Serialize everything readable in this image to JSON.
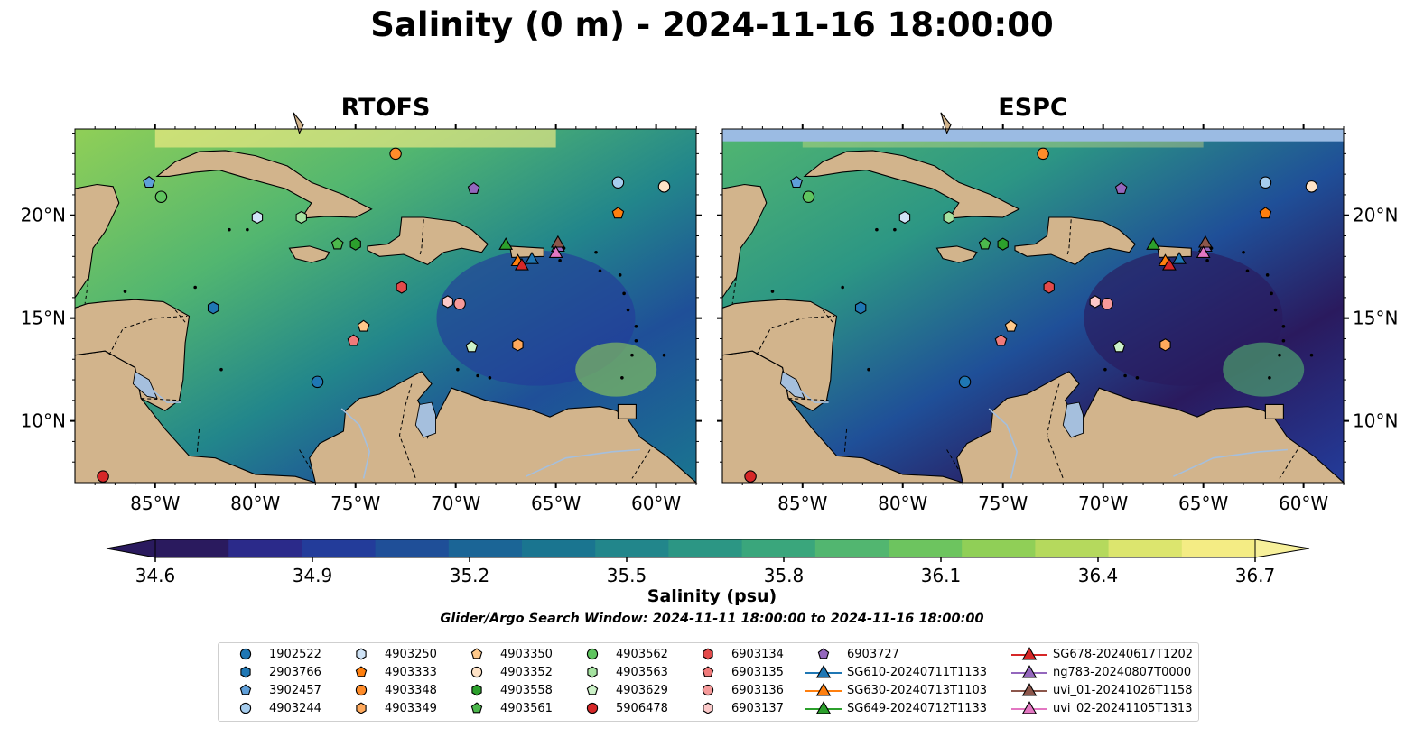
{
  "title": "Salinity (0 m) - 2024-11-16 18:00:00",
  "panels": [
    {
      "title": "RTOFS"
    },
    {
      "title": "ESPC"
    }
  ],
  "colorbar": {
    "label": "Salinity (psu)",
    "ticks": [
      "34.6",
      "34.9",
      "35.2",
      "35.5",
      "35.8",
      "36.1",
      "36.4",
      "36.7"
    ],
    "colors": [
      "#2a1a5e",
      "#2b2a8a",
      "#233c9a",
      "#1f4f98",
      "#1b6596",
      "#1a7590",
      "#22868b",
      "#2c9684",
      "#3aa67c",
      "#52b670",
      "#6dc45f",
      "#90cf57",
      "#b5d95d",
      "#dce56e",
      "#f4ec84"
    ]
  },
  "search_window": "Glider/Argo Search Window: 2024-11-11 18:00:00 to 2024-11-16 18:00:00",
  "chart_data": {
    "type": "map",
    "variable": "Salinity (psu)",
    "depth": "0 m",
    "time": "2024-11-16 18:00:00",
    "lon_range": [
      -89,
      -58
    ],
    "lat_range": [
      7,
      24.2
    ],
    "x_ticks": [
      {
        "lon": -85,
        "label": "85°W"
      },
      {
        "lon": -80,
        "label": "80°W"
      },
      {
        "lon": -75,
        "label": "75°W"
      },
      {
        "lon": -70,
        "label": "70°W"
      },
      {
        "lon": -65,
        "label": "65°W"
      },
      {
        "lon": -60,
        "label": "60°W"
      }
    ],
    "y_ticks": [
      {
        "lat": 10,
        "label": "10°N"
      },
      {
        "lat": 15,
        "label": "15°N"
      },
      {
        "lat": 20,
        "label": "20°N"
      }
    ],
    "color_range": [
      34.6,
      36.7
    ],
    "platforms": [
      {
        "id": "1902522",
        "marker": "circle",
        "color": "#1f77b4",
        "lon": -76.9,
        "lat": 11.9
      },
      {
        "id": "2903766",
        "marker": "hexagon",
        "color": "#1f77b4",
        "lon": -82.1,
        "lat": 15.5
      },
      {
        "id": "3902457",
        "marker": "pentagon",
        "color": "#5f9fd9",
        "lon": -85.3,
        "lat": 21.6
      },
      {
        "id": "4903244",
        "marker": "circle",
        "color": "#a6cdee",
        "lon": -61.9,
        "lat": 21.6
      },
      {
        "id": "4903250",
        "marker": "hexagon",
        "color": "#cfe3f6",
        "lon": -79.9,
        "lat": 19.9
      },
      {
        "id": "4903333",
        "marker": "pentagon",
        "color": "#ff7f0e",
        "lon": -61.9,
        "lat": 20.1
      },
      {
        "id": "4903348",
        "marker": "circle",
        "color": "#ff8c2a",
        "lon": -73.0,
        "lat": 23.0
      },
      {
        "id": "4903349",
        "marker": "hexagon",
        "color": "#ffa95c",
        "lon": -66.9,
        "lat": 13.7
      },
      {
        "id": "4903350",
        "marker": "pentagon",
        "color": "#ffc98a",
        "lon": -74.6,
        "lat": 14.6
      },
      {
        "id": "4903352",
        "marker": "circle",
        "color": "#ffe3c7",
        "lon": -59.6,
        "lat": 21.4
      },
      {
        "id": "4903558",
        "marker": "hexagon",
        "color": "#2ca02c",
        "lon": -75.0,
        "lat": 18.6
      },
      {
        "id": "4903561",
        "marker": "pentagon",
        "color": "#4cb84c",
        "lon": -75.9,
        "lat": 18.6
      },
      {
        "id": "4903562",
        "marker": "circle",
        "color": "#5fc45f",
        "lon": -84.7,
        "lat": 20.9
      },
      {
        "id": "4903563",
        "marker": "hexagon",
        "color": "#a5e2a0",
        "lon": -77.7,
        "lat": 19.9
      },
      {
        "id": "4903629",
        "marker": "pentagon",
        "color": "#ccf2c8",
        "lon": -69.2,
        "lat": 13.6
      },
      {
        "id": "5906478",
        "marker": "circle",
        "color": "#d62728",
        "lon": -87.6,
        "lat": 7.3
      },
      {
        "id": "6903134",
        "marker": "hexagon",
        "color": "#e34a4a",
        "lon": -72.7,
        "lat": 16.5
      },
      {
        "id": "6903135",
        "marker": "pentagon",
        "color": "#f07a7a",
        "lon": -75.1,
        "lat": 13.9
      },
      {
        "id": "6903136",
        "marker": "circle",
        "color": "#f59a9a",
        "lon": -69.8,
        "lat": 15.7
      },
      {
        "id": "6903137",
        "marker": "hexagon",
        "color": "#fbc9c9",
        "lon": -70.4,
        "lat": 15.8
      },
      {
        "id": "6903727",
        "marker": "pentagon",
        "color": "#9467bd",
        "lon": -69.1,
        "lat": 21.3
      },
      {
        "id": "SG610-20240711T1133",
        "marker": "triangle",
        "color": "#1f77b4",
        "lon": -66.2,
        "lat": 17.9
      },
      {
        "id": "SG630-20240713T1103",
        "marker": "triangle",
        "color": "#ff7f0e",
        "lon": -66.9,
        "lat": 17.8
      },
      {
        "id": "SG649-20240712T1133",
        "marker": "triangle",
        "color": "#2ca02c",
        "lon": -67.5,
        "lat": 18.6
      },
      {
        "id": "SG678-20240617T1202",
        "marker": "triangle",
        "color": "#d62728",
        "lon": -66.7,
        "lat": 17.6
      },
      {
        "id": "ng783-20240807T0000",
        "marker": "triangle",
        "color": "#9467bd",
        "lon": -64.9,
        "lat": 18.5
      },
      {
        "id": "uvi_01-20241026T1158",
        "marker": "triangle",
        "color": "#8c564b",
        "lon": -64.9,
        "lat": 18.7
      },
      {
        "id": "uvi_02-20241105T1313",
        "marker": "triangle",
        "color": "#e377c2",
        "lon": -65.0,
        "lat": 18.2
      }
    ]
  }
}
